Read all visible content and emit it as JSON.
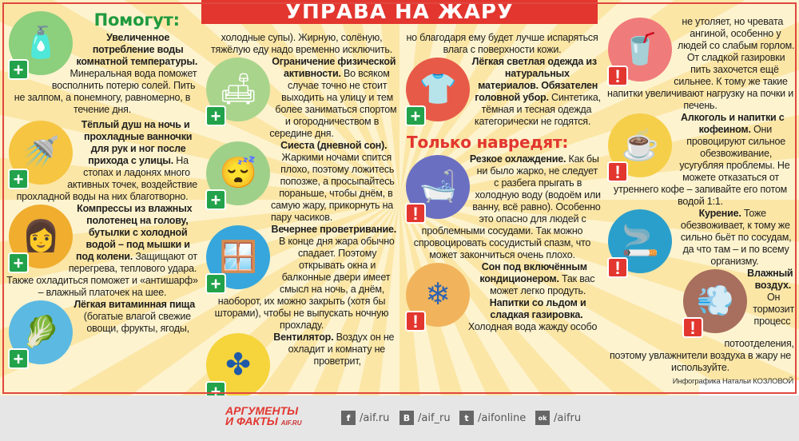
{
  "title": "УПРАВА НА ЖАРУ",
  "colors": {
    "accent_red": "#e2362f",
    "accent_green": "#22a24a",
    "background": "#fdf3cf"
  },
  "help": {
    "heading": "Помогут:",
    "items": [
      {
        "icon": "water-bottle-icon",
        "title": "Увеличенное потребление воды комнатной температуры.",
        "body": " Минеральная вода поможет восполнить потерю солей. Пить не залпом, а понемногу, равномерно, в течение дня."
      },
      {
        "icon": "shower-icon",
        "title": "Тёплый душ на ночь и прохладные ванночки для рук и ног после прихода с улицы.",
        "body": " На стопах и ладонях много активных точек, воздействие прохладной воды на них благотворно."
      },
      {
        "icon": "woman-compress-icon",
        "title": "Компрессы из влажных полотенец на голову, бутылки с холодной водой – под мышки и под колени.",
        "body": " Защищают от перегрева, теплового удара. Также охладиться поможет и «антишарф» – влажный платочек на шее."
      },
      {
        "icon": "vegetables-icon",
        "title": "Лёгкая витаминная пища",
        "body": " (богатые влагой свежие овощи, фрукты, ягоды,",
        "continued": "холодные супы). Жирную, солёную, тяжёлую еду надо временно исключить."
      },
      {
        "icon": "armchair-icon",
        "title": "Ограничение физической активности.",
        "body": " Во всяком случае точно не стоит выходить на улицу и тем более заниматься спортом и огородничеством в середине дня."
      },
      {
        "icon": "sleep-mask-icon",
        "title": "Сиеста (дневной сон).",
        "body": " Жаркими ночами спится плохо, поэтому ложитесь попозже, а просыпайтесь пораньше, чтобы днём, в самую жару, прикорнуть на пару часиков."
      },
      {
        "icon": "window-icon",
        "title": "Вечернее проветривание.",
        "body": " В конце дня жара обычно спадает. Поэтому открывать окна и балконные двери имеет смысл на ночь, а днём, наоборот, их можно закрыть (хотя бы шторами), чтобы не выпускать ночную прохладу."
      },
      {
        "icon": "fan-icon",
        "title": "Вентилятор.",
        "body": " Воздух он не охладит и комнату не проветрит,",
        "continued": "но благодаря ему будет лучше испаряться влага с поверхности кожи."
      },
      {
        "icon": "light-clothing-icon",
        "title": "Лёгкая светлая одежда из натуральных материалов. Обязателен головной убор.",
        "body": " Синтетика, тёмная и тесная одежда категорически не годятся."
      }
    ]
  },
  "harm": {
    "heading": "Только навредят:",
    "items": [
      {
        "icon": "cold-bath-icon",
        "title": "Резкое охлаждение.",
        "body": " Как бы ни было жарко, не следует с разбега прыгать в холодную воду (водоём или ванну, всё равно). Особенно это опасно для людей с проблемными сосудами. Так можно спровоцировать сосудистый спазм, что может закончиться очень плохо."
      },
      {
        "icon": "air-conditioner-icon",
        "title": "Сон под включённым кондиционером.",
        "body": " Так вас может легко продуть."
      },
      {
        "icon": "iced-drink-icon",
        "title": "Напитки со льдом и сладкая газировка.",
        "body": " Холодная вода жажду особо",
        "continued": "не утоляет, но чревата ангиной, особенно у людей со слабым горлом. От сладкой газировки пить захочется ещё сильнее. К тому же такие напитки увеличивают нагрузку на почки и печень."
      },
      {
        "icon": "coffee-machine-icon",
        "title": "Алкоголь и напитки с кофеином.",
        "body": " Они провоцируют сильное обезвоживание, усугубляя проблемы. Не можете отказаться от утреннего кофе – запивайте его потом водой 1:1."
      },
      {
        "icon": "smoking-icon",
        "title": "Курение.",
        "body": " Тоже обезвоживает, к тому же сильно бьёт по сосудам, да что там – и по всему организму."
      },
      {
        "icon": "humidifier-icon",
        "title": "Влажный воздух.",
        "body": " Он тормозит процесс потоотделения, поэтому увлажнители воздуха в жару не используйте."
      }
    ]
  },
  "credit": "Инфографика Натальи КОЗЛОВОЙ",
  "footer": {
    "logo_line1": "АРГУМЕНТЫ",
    "logo_line2": "И ФАКТЫ",
    "logo_site": "AIF.RU",
    "social": [
      {
        "icon": "facebook-icon",
        "glyph": "f",
        "label": "/aif.ru"
      },
      {
        "icon": "vk-icon",
        "glyph": "В",
        "label": "/aif_ru"
      },
      {
        "icon": "twitter-icon",
        "glyph": "t",
        "label": "/aifonline"
      },
      {
        "icon": "odnoklassniki-icon",
        "glyph": "ok",
        "label": "/aifru"
      }
    ]
  }
}
